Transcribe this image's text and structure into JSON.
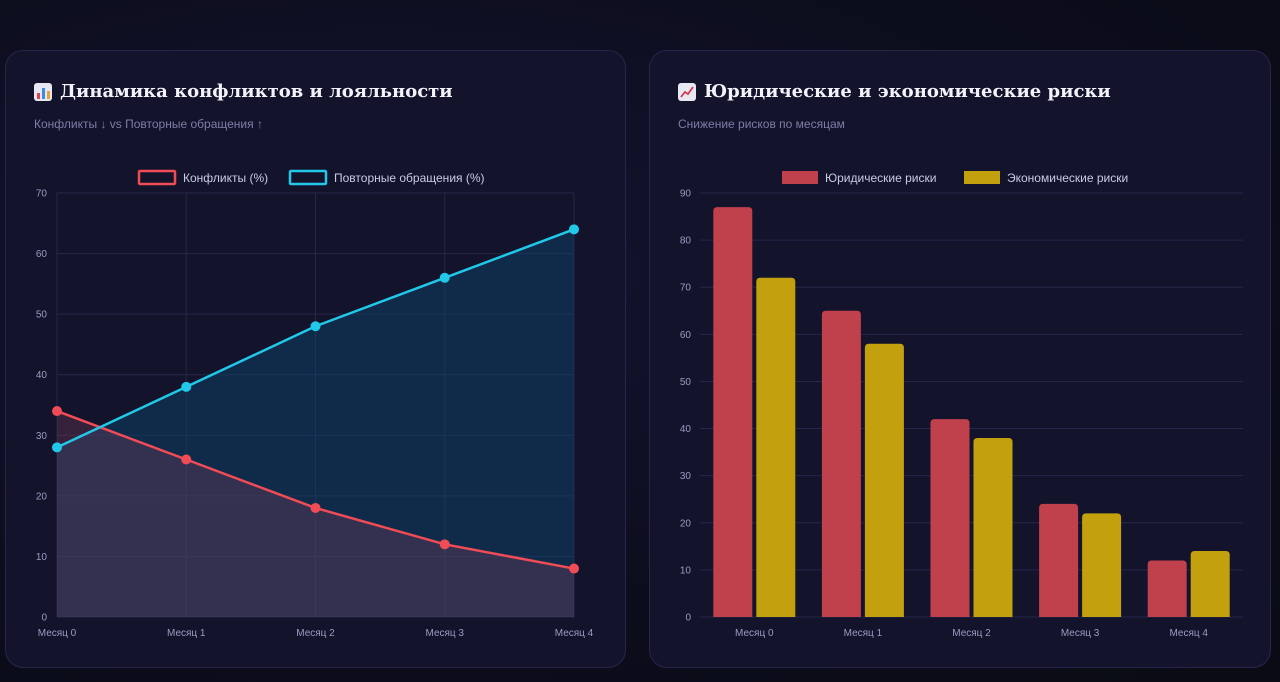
{
  "cards": [
    {
      "title": "Динамика конфликтов и лояльности",
      "subtitle": "Конфликты ↓ vs Повторные обращения ↑",
      "icon": "bar-chart-icon"
    },
    {
      "title": "Юридические и экономические риски",
      "subtitle": "Снижение рисков по месяцам",
      "icon": "trend-chart-icon"
    }
  ],
  "chart_data": [
    {
      "type": "area",
      "categories": [
        "Месяц 0",
        "Месяц 1",
        "Месяц 2",
        "Месяц 3",
        "Месяц 4"
      ],
      "series": [
        {
          "name": "Конфликты (%)",
          "values": [
            34,
            26,
            18,
            12,
            8
          ],
          "color": "#ef4c55",
          "fill": "rgba(120,60,90,0.35)"
        },
        {
          "name": "Повторные обращения (%)",
          "values": [
            28,
            38,
            48,
            56,
            64
          ],
          "color": "#21c8e8",
          "fill": "rgba(14,70,110,0.45)"
        }
      ],
      "ylim": [
        0,
        70
      ],
      "yticks": [
        0,
        10,
        20,
        30,
        40,
        50,
        60,
        70
      ],
      "grid": true,
      "legend": "top-center"
    },
    {
      "type": "bar",
      "categories": [
        "Месяц 0",
        "Месяц 1",
        "Месяц 2",
        "Месяц 3",
        "Месяц 4"
      ],
      "series": [
        {
          "name": "Юридические риски",
          "values": [
            87,
            65,
            42,
            24,
            12
          ],
          "color": "#c0404c"
        },
        {
          "name": "Экономические риски",
          "values": [
            72,
            58,
            38,
            22,
            14
          ],
          "color": "#c2a00e"
        }
      ],
      "ylim": [
        0,
        90
      ],
      "yticks": [
        0,
        10,
        20,
        30,
        40,
        50,
        60,
        70,
        80,
        90
      ],
      "grid": true,
      "legend": "top-center"
    }
  ]
}
